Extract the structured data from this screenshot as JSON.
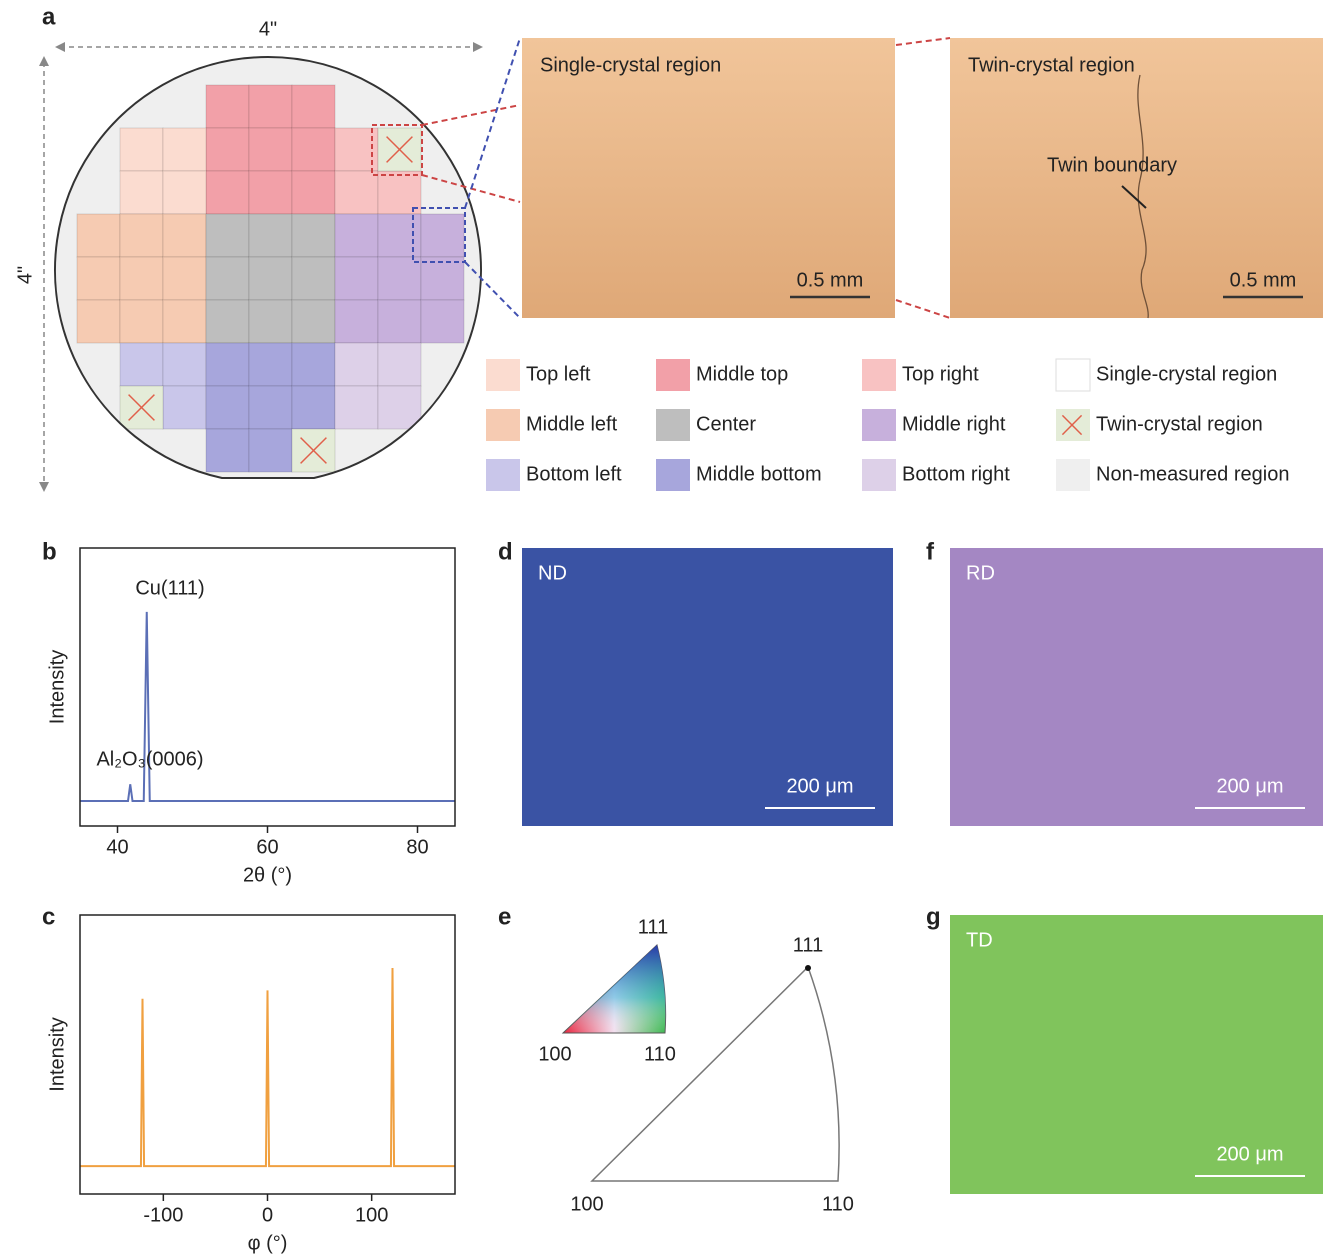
{
  "panel_labels": [
    "a",
    "b",
    "c",
    "d",
    "e",
    "f",
    "g"
  ],
  "wafer": {
    "width_label": "4\"",
    "height_label": "4\""
  },
  "micrographs": [
    {
      "label": "Single-crystal region",
      "scale_bar": "0.5 mm"
    },
    {
      "label": "Twin-crystal region",
      "scale_bar": "0.5 mm",
      "annotation": "Twin boundary"
    }
  ],
  "legend": [
    {
      "label": "Top left",
      "color": "#fbdcd0"
    },
    {
      "label": "Middle left",
      "color": "#f6cbb2"
    },
    {
      "label": "Bottom left",
      "color": "#c9c6ea"
    },
    {
      "label": "Middle top",
      "color": "#f2a0a8"
    },
    {
      "label": "Center",
      "color": "#bebebe"
    },
    {
      "label": "Middle bottom",
      "color": "#a7a6dc"
    },
    {
      "label": "Top right",
      "color": "#f8c2c2"
    },
    {
      "label": "Middle right",
      "color": "#c7b0dc"
    },
    {
      "label": "Bottom right",
      "color": "#ddd0e8"
    },
    {
      "label": "Single-crystal region",
      "color": "#ffffff"
    },
    {
      "label": "Twin-crystal region",
      "color": "#e4ecd8"
    },
    {
      "label": "Non-measured region",
      "color": "#efefef"
    }
  ],
  "chart_data": [
    {
      "type": "line",
      "color": "#5b6fb6",
      "x": [
        35,
        41.4,
        41.7,
        42.0,
        43.5,
        43.9,
        44.3,
        85
      ],
      "values": [
        9,
        9,
        15,
        9,
        9,
        77,
        9,
        9
      ],
      "xlim": [
        35,
        85
      ],
      "xticks": [
        40,
        60,
        80
      ],
      "ylim": [
        0,
        100
      ],
      "xlabel": "2θ (°)",
      "ylabel": "Intensity",
      "annotations": [
        "Cu(111)",
        "Al₂O₃(0006)"
      ]
    },
    {
      "type": "line",
      "color": "#f0a040",
      "x": [
        -180,
        -121.5,
        -120,
        -118.5,
        -1.5,
        0,
        1.5,
        118.5,
        120,
        121.5,
        180
      ],
      "values": [
        10,
        10,
        70,
        10,
        10,
        73,
        10,
        10,
        81,
        10,
        10
      ],
      "xlim": [
        -180,
        180
      ],
      "xticks": [
        -100,
        0,
        100
      ],
      "ylim": [
        0,
        100
      ],
      "xlabel": "φ (°)",
      "ylabel": "Intensity"
    }
  ],
  "ebsd_maps": [
    {
      "direction": "ND",
      "color": "#3a53a4",
      "scale_bar": "200 μm"
    },
    {
      "direction": "RD",
      "color": "#a487c3",
      "scale_bar": "200 μm"
    },
    {
      "direction": "TD",
      "color": "#80c45c",
      "scale_bar": "200 μm"
    }
  ],
  "ipf": {
    "inset_labels": [
      "111",
      "100",
      "110"
    ],
    "labels": [
      "111",
      "100",
      "110"
    ]
  }
}
